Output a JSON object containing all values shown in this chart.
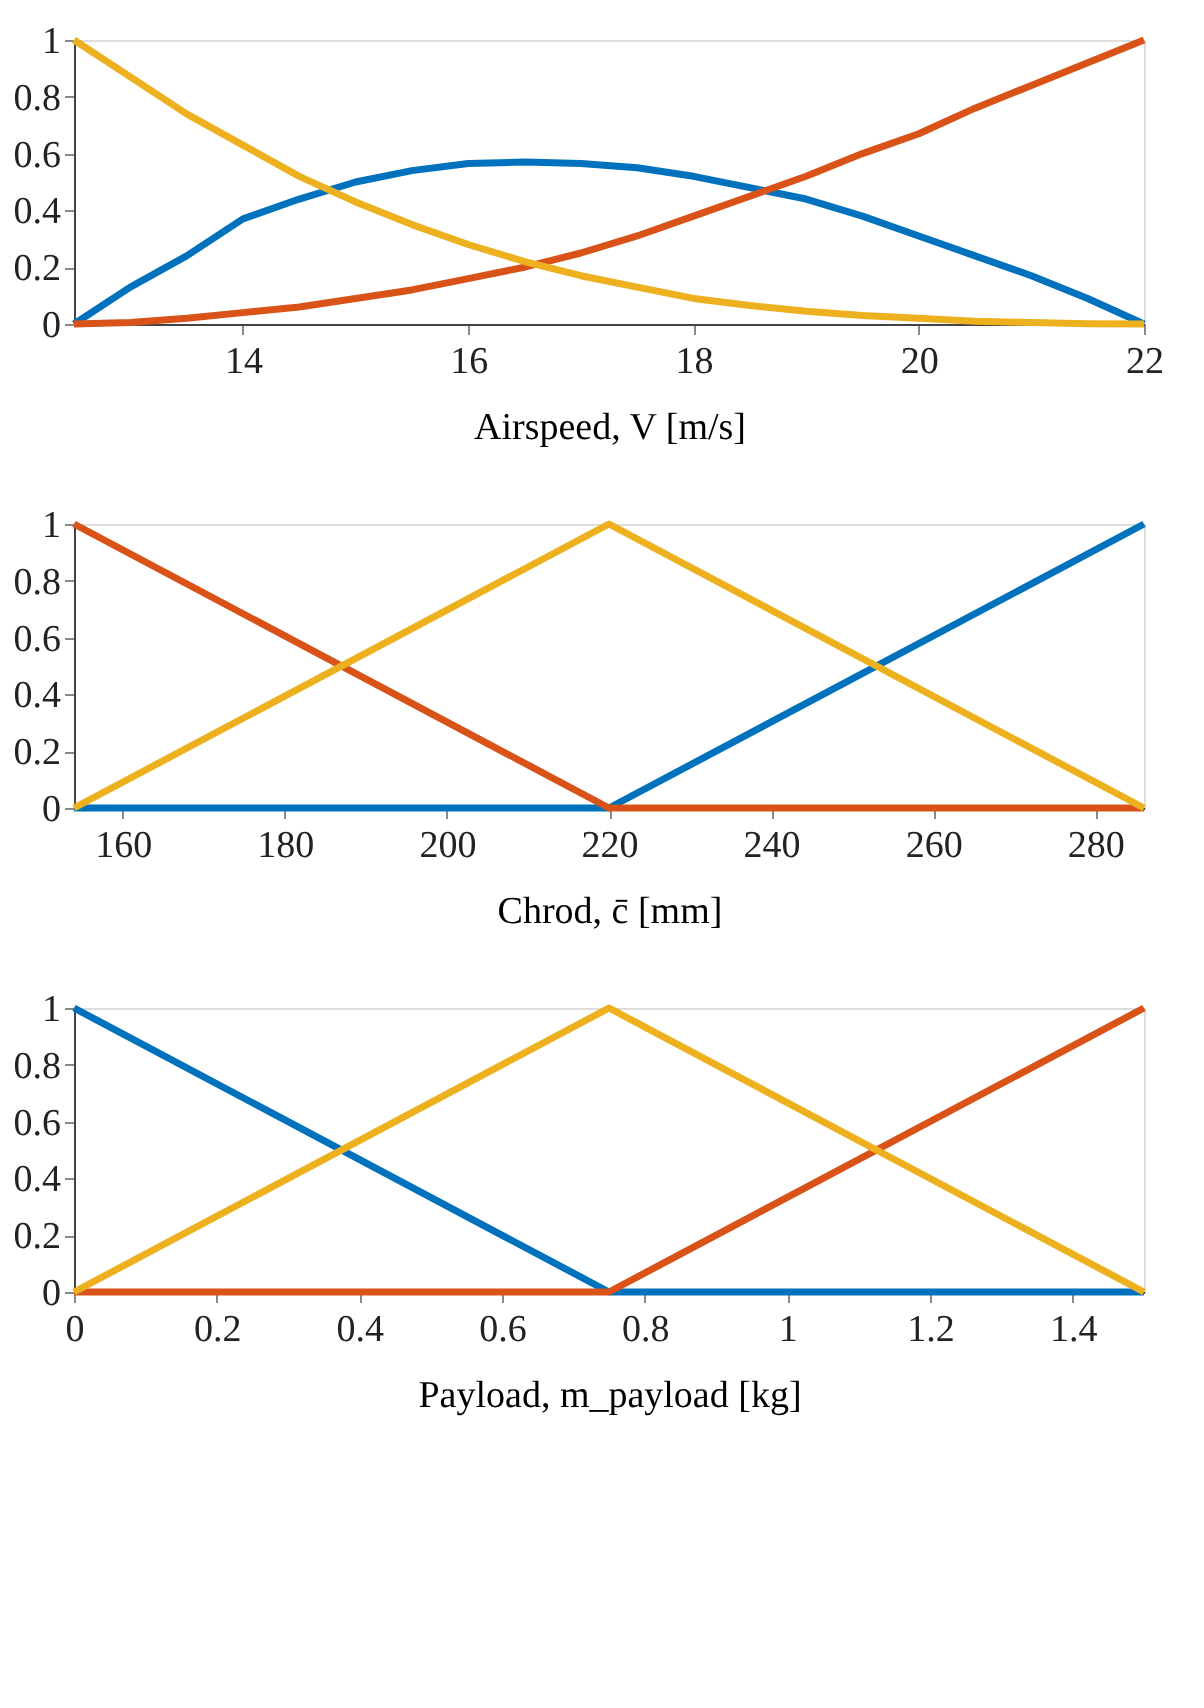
{
  "chart_data": [
    {
      "type": "line",
      "xlabel": "Airspeed, V [m/s]",
      "xlim": [
        12.5,
        22
      ],
      "xticks": [
        14,
        16,
        18,
        20,
        22
      ],
      "ylim": [
        0,
        1
      ],
      "yticks": [
        0,
        0.2,
        0.4,
        0.6,
        0.8,
        1
      ],
      "grid": false,
      "legend": false,
      "marker": "none",
      "line_style": "solid",
      "x": [
        12.5,
        13,
        13.5,
        14,
        14.5,
        15,
        15.5,
        16,
        16.5,
        17,
        17.5,
        18,
        18.5,
        19,
        19.5,
        20,
        20.5,
        21,
        21.5,
        22
      ],
      "series": [
        {
          "color": "#0072bd",
          "values": [
            0,
            0.13,
            0.24,
            0.37,
            0.44,
            0.5,
            0.54,
            0.565,
            0.57,
            0.565,
            0.55,
            0.52,
            0.48,
            0.44,
            0.38,
            0.31,
            0.24,
            0.17,
            0.09,
            0
          ]
        },
        {
          "color": "#d95319",
          "values": [
            0,
            0.005,
            0.02,
            0.04,
            0.06,
            0.09,
            0.12,
            0.16,
            0.2,
            0.25,
            0.31,
            0.38,
            0.45,
            0.52,
            0.6,
            0.67,
            0.76,
            0.84,
            0.92,
            1
          ]
        },
        {
          "color": "#edb120",
          "values": [
            1,
            0.87,
            0.74,
            0.63,
            0.52,
            0.43,
            0.35,
            0.28,
            0.22,
            0.17,
            0.13,
            0.09,
            0.065,
            0.045,
            0.03,
            0.02,
            0.01,
            0.005,
            0.001,
            0
          ]
        }
      ]
    },
    {
      "type": "line",
      "xlabel": "Chrod, c̄ [mm]",
      "xlim": [
        154,
        286
      ],
      "xticks": [
        160,
        180,
        200,
        220,
        240,
        260,
        280
      ],
      "ylim": [
        0,
        1
      ],
      "yticks": [
        0,
        0.2,
        0.4,
        0.6,
        0.8,
        1
      ],
      "grid": false,
      "legend": false,
      "marker": "none",
      "line_style": "solid",
      "x": [
        154,
        220,
        286
      ],
      "series": [
        {
          "color": "#0072bd",
          "values": [
            0,
            0,
            1
          ]
        },
        {
          "color": "#d95319",
          "values": [
            1,
            0,
            0
          ]
        },
        {
          "color": "#edb120",
          "values": [
            0,
            1,
            0
          ]
        }
      ]
    },
    {
      "type": "line",
      "xlabel": "Payload, m_payload [kg]",
      "xlim": [
        0,
        1.5
      ],
      "xticks": [
        0,
        0.2,
        0.4,
        0.6,
        0.8,
        1,
        1.2,
        1.4
      ],
      "ylim": [
        0,
        1
      ],
      "yticks": [
        0,
        0.2,
        0.4,
        0.6,
        0.8,
        1
      ],
      "grid": false,
      "legend": false,
      "marker": "none",
      "line_style": "solid",
      "x": [
        0,
        0.75,
        1.5
      ],
      "series": [
        {
          "color": "#0072bd",
          "values": [
            1,
            0,
            0
          ]
        },
        {
          "color": "#d95319",
          "values": [
            0,
            0,
            1
          ]
        },
        {
          "color": "#edb120",
          "values": [
            0,
            1,
            0
          ]
        }
      ]
    }
  ]
}
